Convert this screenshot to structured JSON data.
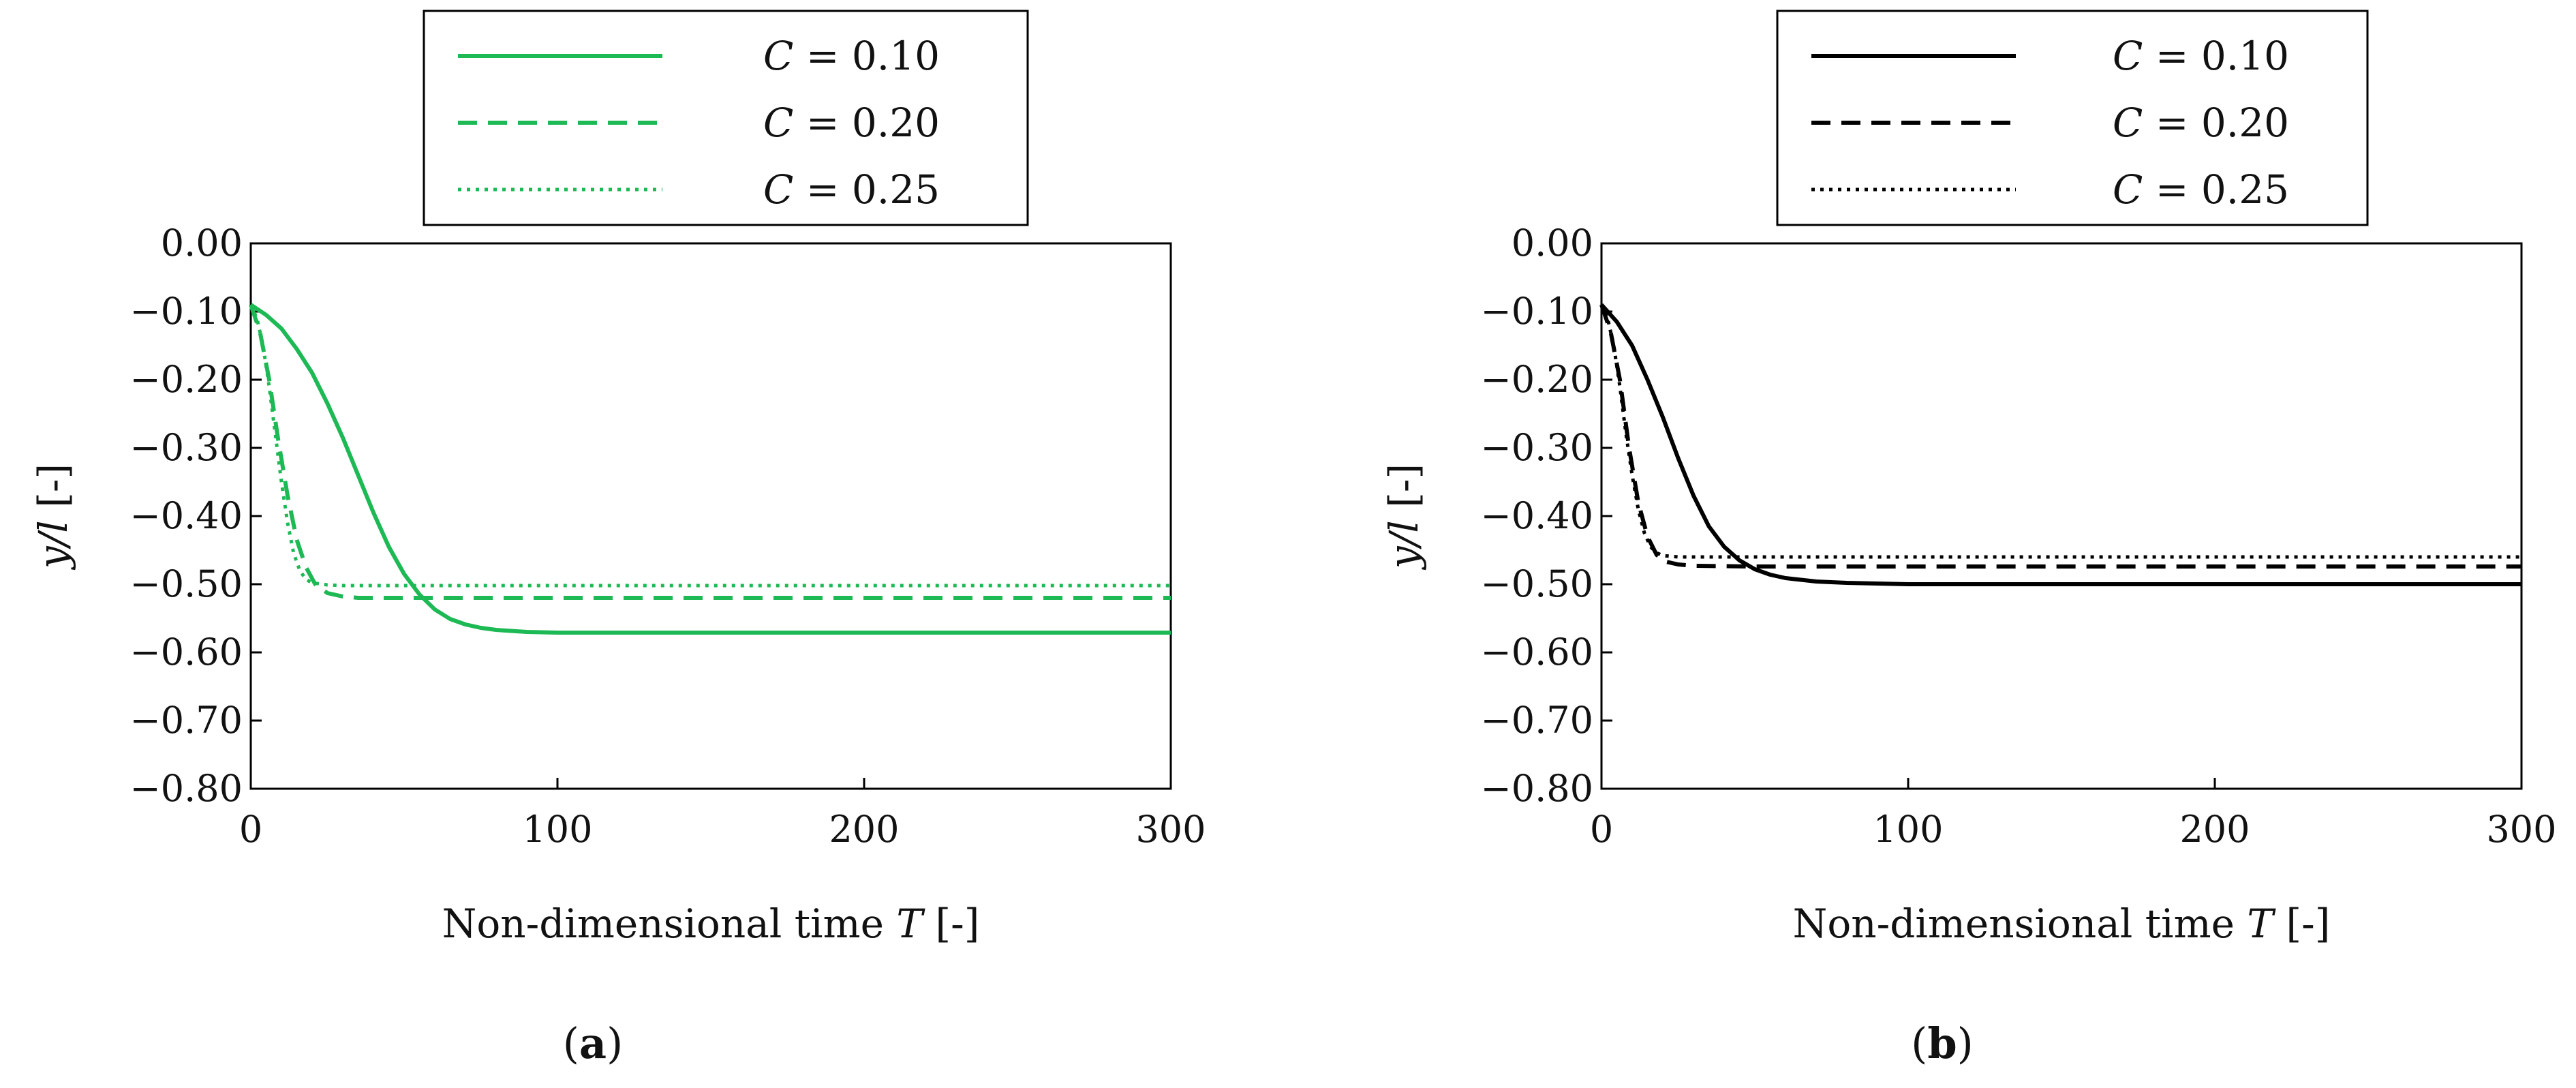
{
  "colors": {
    "panel_a": "#1db954",
    "panel_b": "#000000"
  },
  "chart_data": [
    {
      "type": "line",
      "panel": "a",
      "panel_label": "a",
      "xlabel_prefix": "Non-dimensional time ",
      "xlabel_var": "T",
      "xlabel_suffix": " [-]",
      "ylabel_var": "y/l",
      "ylabel_suffix": " [-]",
      "xlim": [
        0,
        300
      ],
      "ylim": [
        -0.8,
        0.0
      ],
      "xticks": [
        0,
        100,
        200,
        300
      ],
      "xtick_labels": [
        "0",
        "100",
        "200",
        "300"
      ],
      "yticks": [
        0.0,
        -0.1,
        -0.2,
        -0.3,
        -0.4,
        -0.5,
        -0.6,
        -0.7,
        -0.8
      ],
      "ytick_labels": [
        "0.00",
        "−0.10",
        "−0.20",
        "−0.30",
        "−0.40",
        "−0.50",
        "−0.60",
        "−0.70",
        "−0.80"
      ],
      "legend_position": "top",
      "series": [
        {
          "name": "C = 0.10",
          "legend_var": "C",
          "legend_eq": " = 0.10",
          "style": "solid",
          "x": [
            0,
            5,
            10,
            15,
            20,
            25,
            30,
            35,
            40,
            45,
            50,
            55,
            60,
            65,
            70,
            75,
            80,
            90,
            100,
            150,
            200,
            250,
            300
          ],
          "y": [
            -0.09,
            -0.105,
            -0.125,
            -0.155,
            -0.19,
            -0.235,
            -0.285,
            -0.34,
            -0.395,
            -0.445,
            -0.485,
            -0.515,
            -0.537,
            -0.551,
            -0.559,
            -0.564,
            -0.567,
            -0.57,
            -0.571,
            -0.571,
            -0.571,
            -0.571,
            -0.571
          ]
        },
        {
          "name": "C = 0.20",
          "legend_var": "C",
          "legend_eq": " = 0.20",
          "style": "dashed",
          "x": [
            0,
            3,
            6,
            9,
            12,
            15,
            18,
            21,
            25,
            30,
            35,
            50,
            100,
            200,
            300
          ],
          "y": [
            -0.09,
            -0.13,
            -0.2,
            -0.29,
            -0.37,
            -0.435,
            -0.475,
            -0.5,
            -0.513,
            -0.518,
            -0.52,
            -0.52,
            -0.52,
            -0.52,
            -0.52
          ]
        },
        {
          "name": "C = 0.25",
          "legend_var": "C",
          "legend_eq": " = 0.25",
          "style": "dotted",
          "x": [
            0,
            2,
            4,
            6,
            8,
            10,
            12,
            14,
            16,
            18,
            20,
            25,
            30,
            50,
            100,
            200,
            300
          ],
          "y": [
            -0.09,
            -0.11,
            -0.15,
            -0.21,
            -0.28,
            -0.35,
            -0.41,
            -0.455,
            -0.48,
            -0.493,
            -0.498,
            -0.501,
            -0.502,
            -0.502,
            -0.502,
            -0.502,
            -0.502
          ]
        }
      ]
    },
    {
      "type": "line",
      "panel": "b",
      "panel_label": "b",
      "xlabel_prefix": "Non-dimensional time ",
      "xlabel_var": "T",
      "xlabel_suffix": " [-]",
      "ylabel_var": "y/l",
      "ylabel_suffix": " [-]",
      "xlim": [
        0,
        300
      ],
      "ylim": [
        -0.8,
        0.0
      ],
      "xticks": [
        0,
        100,
        200,
        300
      ],
      "xtick_labels": [
        "0",
        "100",
        "200",
        "300"
      ],
      "yticks": [
        0.0,
        -0.1,
        -0.2,
        -0.3,
        -0.4,
        -0.5,
        -0.6,
        -0.7,
        -0.8
      ],
      "ytick_labels": [
        "0.00",
        "−0.10",
        "−0.20",
        "−0.30",
        "−0.40",
        "−0.50",
        "−0.60",
        "−0.70",
        "−0.80"
      ],
      "legend_position": "top",
      "series": [
        {
          "name": "C = 0.10",
          "legend_var": "C",
          "legend_eq": " = 0.10",
          "style": "solid",
          "x": [
            0,
            5,
            10,
            15,
            20,
            25,
            30,
            35,
            40,
            45,
            50,
            55,
            60,
            70,
            80,
            90,
            100,
            150,
            200,
            250,
            300
          ],
          "y": [
            -0.09,
            -0.115,
            -0.15,
            -0.2,
            -0.255,
            -0.315,
            -0.37,
            -0.415,
            -0.445,
            -0.465,
            -0.478,
            -0.486,
            -0.491,
            -0.496,
            -0.498,
            -0.499,
            -0.5,
            -0.5,
            -0.5,
            -0.5,
            -0.5
          ]
        },
        {
          "name": "C = 0.20",
          "legend_var": "C",
          "legend_eq": " = 0.20",
          "style": "dashed",
          "x": [
            0,
            3,
            6,
            9,
            12,
            15,
            18,
            21,
            25,
            30,
            50,
            100,
            200,
            300
          ],
          "y": [
            -0.09,
            -0.13,
            -0.2,
            -0.3,
            -0.38,
            -0.43,
            -0.457,
            -0.467,
            -0.471,
            -0.473,
            -0.474,
            -0.474,
            -0.474,
            -0.474
          ]
        },
        {
          "name": "C = 0.25",
          "legend_var": "C",
          "legend_eq": " = 0.25",
          "style": "dotted",
          "x": [
            0,
            2,
            4,
            6,
            8,
            10,
            12,
            14,
            16,
            18,
            20,
            25,
            30,
            50,
            100,
            200,
            300
          ],
          "y": [
            -0.09,
            -0.11,
            -0.15,
            -0.21,
            -0.28,
            -0.34,
            -0.39,
            -0.425,
            -0.445,
            -0.454,
            -0.458,
            -0.46,
            -0.46,
            -0.46,
            -0.46,
            -0.46,
            -0.46
          ]
        }
      ]
    }
  ]
}
